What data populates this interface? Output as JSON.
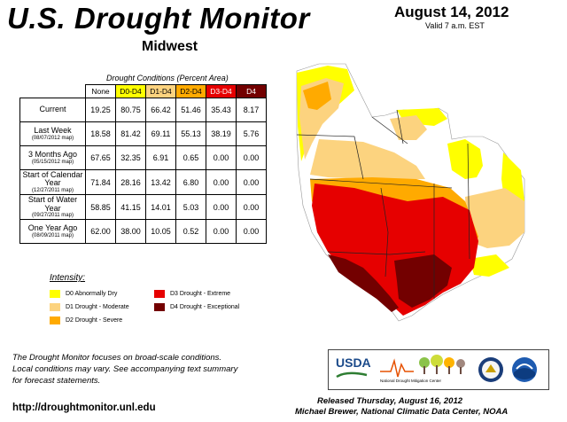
{
  "header": {
    "title": "U.S. Drought Monitor",
    "region": "Midwest",
    "date": "August 14, 2012",
    "valid": "Valid 7 a.m. EST"
  },
  "table": {
    "caption": "Drought Conditions (Percent Area)",
    "columns": [
      "None",
      "D0-D4",
      "D1-D4",
      "D2-D4",
      "D3-D4",
      "D4"
    ],
    "rows": [
      {
        "label": "Current",
        "sub": "",
        "values": [
          "19.25",
          "80.75",
          "66.42",
          "51.46",
          "35.43",
          "8.17"
        ]
      },
      {
        "label": "Last Week",
        "sub": "(08/07/2012 map)",
        "values": [
          "18.58",
          "81.42",
          "69.11",
          "55.13",
          "38.19",
          "5.76"
        ]
      },
      {
        "label": "3 Months Ago",
        "sub": "(05/15/2012 map)",
        "values": [
          "67.65",
          "32.35",
          "6.91",
          "0.65",
          "0.00",
          "0.00"
        ]
      },
      {
        "label": "Start of Calendar Year",
        "sub": "(12/27/2011 map)",
        "values": [
          "71.84",
          "28.16",
          "13.42",
          "6.80",
          "0.00",
          "0.00"
        ]
      },
      {
        "label": "Start of Water Year",
        "sub": "(09/27/2011 map)",
        "values": [
          "58.85",
          "41.15",
          "14.01",
          "5.03",
          "0.00",
          "0.00"
        ]
      },
      {
        "label": "One Year Ago",
        "sub": "(08/09/2011 map)",
        "values": [
          "62.00",
          "38.00",
          "10.05",
          "0.52",
          "0.00",
          "0.00"
        ]
      }
    ]
  },
  "legend": {
    "title": "Intensity:",
    "items": [
      {
        "label": "D0 Abnormally Dry",
        "color": "#ffff00"
      },
      {
        "label": "D1 Drought - Moderate",
        "color": "#fcd37f"
      },
      {
        "label": "D2 Drought - Severe",
        "color": "#ffaa00"
      },
      {
        "label": "D3 Drought - Extreme",
        "color": "#e60000"
      },
      {
        "label": "D4 Drought - Exceptional",
        "color": "#730000"
      }
    ]
  },
  "footer": {
    "note_lines": [
      "The Drought Monitor focuses on broad-scale conditions.",
      "Local conditions may vary. See accompanying text summary",
      "for forecast statements."
    ],
    "url": "http://droughtmonitor.unl.edu",
    "released": "Released Thursday, August 16, 2012",
    "author": "Michael Brewer, National Climatic Data Center, NOAA"
  },
  "logos": {
    "usda": "USDA",
    "ndmc": "National Drought Mitigation Center"
  }
}
